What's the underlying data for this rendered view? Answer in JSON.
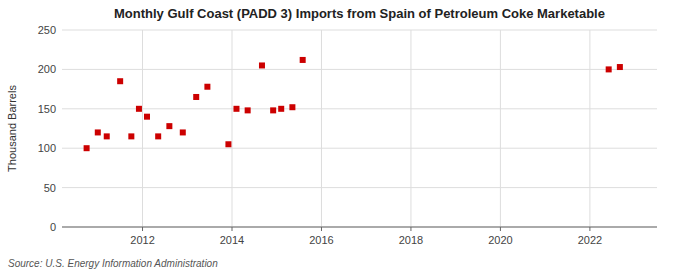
{
  "chart_data": {
    "type": "scatter",
    "title": "Monthly Gulf Coast (PADD 3) Imports from Spain of Petroleum Coke Marketable",
    "ylabel": "Thousand Barrels",
    "source": "Source: U.S. Energy Information Administration",
    "color": "#cc0000",
    "marker": "square",
    "grid": true,
    "xlim": [
      2010.2,
      2023.5
    ],
    "ylim": [
      0,
      250
    ],
    "xticks": [
      2012,
      2014,
      2016,
      2018,
      2020,
      2022
    ],
    "yticks": [
      0,
      50,
      100,
      150,
      200,
      250
    ],
    "x": [
      2010.75,
      2011.0,
      2011.2,
      2011.5,
      2011.75,
      2011.92,
      2012.1,
      2012.35,
      2012.6,
      2012.9,
      2013.2,
      2013.45,
      2013.92,
      2014.1,
      2014.35,
      2014.67,
      2014.92,
      2015.1,
      2015.35,
      2015.58,
      2022.42,
      2022.67
    ],
    "values": [
      100,
      120,
      115,
      185,
      115,
      150,
      140,
      115,
      128,
      120,
      165,
      178,
      105,
      150,
      148,
      205,
      148,
      150,
      152,
      212,
      200,
      203
    ]
  }
}
